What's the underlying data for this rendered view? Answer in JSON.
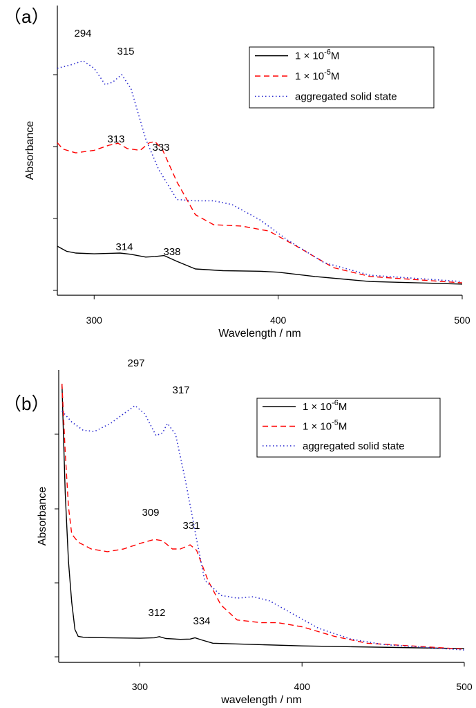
{
  "chart_data": [
    {
      "type": "line",
      "panel_label": "（a）",
      "xlabel": "Wavelength / nm",
      "ylabel": "Absorbance",
      "xlim": [
        280,
        500
      ],
      "ylim": [
        0,
        1
      ],
      "x_ticks": [
        300,
        400,
        500
      ],
      "y_tick_count": 4,
      "legend_position": "top-right",
      "series": [
        {
          "name": "1 × 10^-6M",
          "legend_text": "1 × 10",
          "legend_exp": "-6",
          "legend_unit": "M",
          "color": "#000000",
          "style": "solid",
          "points": [
            [
              280,
              0.175
            ],
            [
              285,
              0.155
            ],
            [
              290,
              0.148
            ],
            [
              300,
              0.145
            ],
            [
              310,
              0.147
            ],
            [
              314,
              0.148
            ],
            [
              320,
              0.143
            ],
            [
              328,
              0.132
            ],
            [
              333,
              0.134
            ],
            [
              338,
              0.138
            ],
            [
              345,
              0.115
            ],
            [
              355,
              0.085
            ],
            [
              370,
              0.078
            ],
            [
              390,
              0.076
            ],
            [
              400,
              0.072
            ],
            [
              420,
              0.055
            ],
            [
              450,
              0.035
            ],
            [
              500,
              0.025
            ]
          ]
        },
        {
          "name": "1 × 10^-5M",
          "legend_text": "1 × 10",
          "legend_exp": "-5",
          "legend_unit": "M",
          "color": "#ff0000",
          "style": "dashed",
          "points": [
            [
              280,
              0.585
            ],
            [
              283,
              0.56
            ],
            [
              290,
              0.545
            ],
            [
              300,
              0.555
            ],
            [
              308,
              0.575
            ],
            [
              313,
              0.583
            ],
            [
              318,
              0.562
            ],
            [
              325,
              0.555
            ],
            [
              330,
              0.585
            ],
            [
              333,
              0.59
            ],
            [
              337,
              0.56
            ],
            [
              345,
              0.43
            ],
            [
              355,
              0.3
            ],
            [
              365,
              0.26
            ],
            [
              380,
              0.255
            ],
            [
              395,
              0.235
            ],
            [
              410,
              0.175
            ],
            [
              430,
              0.09
            ],
            [
              450,
              0.055
            ],
            [
              500,
              0.03
            ]
          ]
        },
        {
          "name": "aggregated solid state",
          "legend_text": "aggregated solid state",
          "color": "#2a2ad0",
          "style": "dotted",
          "points": [
            [
              280,
              0.88
            ],
            [
              288,
              0.895
            ],
            [
              294,
              0.91
            ],
            [
              300,
              0.88
            ],
            [
              306,
              0.815
            ],
            [
              310,
              0.825
            ],
            [
              315,
              0.855
            ],
            [
              320,
              0.8
            ],
            [
              328,
              0.6
            ],
            [
              335,
              0.48
            ],
            [
              345,
              0.36
            ],
            [
              355,
              0.355
            ],
            [
              365,
              0.355
            ],
            [
              375,
              0.34
            ],
            [
              390,
              0.28
            ],
            [
              405,
              0.2
            ],
            [
              425,
              0.11
            ],
            [
              450,
              0.06
            ],
            [
              500,
              0.035
            ]
          ]
        }
      ],
      "annotations": [
        {
          "text": "294",
          "x": 294,
          "y": 0.91
        },
        {
          "text": "315",
          "x": 315,
          "y": 0.855
        },
        {
          "text": "313",
          "x": 313,
          "y": 0.583
        },
        {
          "text": "333",
          "x": 333,
          "y": 0.59
        },
        {
          "text": "314",
          "x": 314,
          "y": 0.148
        },
        {
          "text": "338",
          "x": 338,
          "y": 0.138
        }
      ]
    },
    {
      "type": "line",
      "panel_label": "（b）",
      "xlabel": "wavelength / nm",
      "ylabel": "Absorbance",
      "xlim": [
        250,
        500
      ],
      "ylim": [
        0,
        1
      ],
      "x_ticks": [
        300,
        400,
        500
      ],
      "y_tick_count": 4,
      "legend_position": "top-right",
      "series": [
        {
          "name": "1 × 10^-6M",
          "legend_text": "1 × 10",
          "legend_exp": "-6",
          "legend_unit": "M",
          "color": "#000000",
          "style": "solid",
          "points": [
            [
              252,
              1.0
            ],
            [
              253,
              0.8
            ],
            [
              254,
              0.6
            ],
            [
              256,
              0.35
            ],
            [
              258,
              0.2
            ],
            [
              260,
              0.1
            ],
            [
              262,
              0.075
            ],
            [
              265,
              0.072
            ],
            [
              280,
              0.07
            ],
            [
              300,
              0.068
            ],
            [
              309,
              0.07
            ],
            [
              312,
              0.074
            ],
            [
              316,
              0.067
            ],
            [
              325,
              0.064
            ],
            [
              331,
              0.065
            ],
            [
              334,
              0.07
            ],
            [
              338,
              0.062
            ],
            [
              345,
              0.05
            ],
            [
              400,
              0.04
            ],
            [
              500,
              0.03
            ]
          ]
        },
        {
          "name": "1 × 10^-5M",
          "legend_text": "1 × 10",
          "legend_exp": "-5",
          "legend_unit": "M",
          "color": "#ff0000",
          "style": "dashed",
          "points": [
            [
              252,
              1.0
            ],
            [
              254,
              0.75
            ],
            [
              256,
              0.55
            ],
            [
              258,
              0.45
            ],
            [
              262,
              0.42
            ],
            [
              270,
              0.395
            ],
            [
              280,
              0.385
            ],
            [
              290,
              0.395
            ],
            [
              300,
              0.415
            ],
            [
              309,
              0.43
            ],
            [
              314,
              0.425
            ],
            [
              320,
              0.395
            ],
            [
              325,
              0.395
            ],
            [
              331,
              0.41
            ],
            [
              335,
              0.39
            ],
            [
              342,
              0.28
            ],
            [
              350,
              0.19
            ],
            [
              360,
              0.135
            ],
            [
              375,
              0.125
            ],
            [
              385,
              0.125
            ],
            [
              400,
              0.11
            ],
            [
              420,
              0.075
            ],
            [
              440,
              0.05
            ],
            [
              500,
              0.028
            ]
          ]
        },
        {
          "name": "aggregated solid state",
          "legend_text": "aggregated solid state",
          "color": "#2a2ad0",
          "style": "dotted",
          "points": [
            [
              252,
              0.9
            ],
            [
              258,
              0.86
            ],
            [
              265,
              0.83
            ],
            [
              272,
              0.825
            ],
            [
              282,
              0.855
            ],
            [
              290,
              0.89
            ],
            [
              297,
              0.92
            ],
            [
              303,
              0.89
            ],
            [
              310,
              0.81
            ],
            [
              314,
              0.82
            ],
            [
              317,
              0.855
            ],
            [
              322,
              0.815
            ],
            [
              328,
              0.65
            ],
            [
              335,
              0.43
            ],
            [
              340,
              0.28
            ],
            [
              350,
              0.225
            ],
            [
              360,
              0.215
            ],
            [
              370,
              0.22
            ],
            [
              380,
              0.205
            ],
            [
              395,
              0.155
            ],
            [
              410,
              0.105
            ],
            [
              430,
              0.065
            ],
            [
              450,
              0.045
            ],
            [
              500,
              0.025
            ]
          ]
        }
      ],
      "annotations": [
        {
          "text": "297",
          "x": 297,
          "y": 0.92
        },
        {
          "text": "317",
          "x": 317,
          "y": 0.855
        },
        {
          "text": "309",
          "x": 309,
          "y": 0.43
        },
        {
          "text": "331",
          "x": 331,
          "y": 0.41
        },
        {
          "text": "312",
          "x": 312,
          "y": 0.074
        },
        {
          "text": "334",
          "x": 334,
          "y": 0.07
        }
      ]
    }
  ]
}
